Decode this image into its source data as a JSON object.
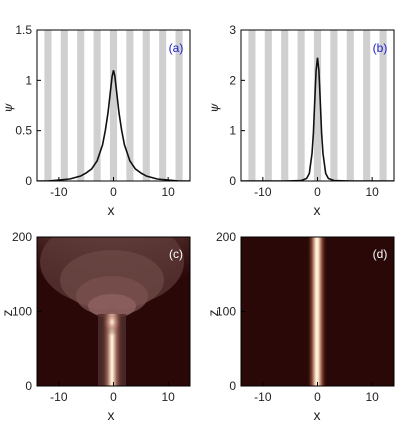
{
  "chart_data": [
    {
      "panel": "(a)",
      "type": "line",
      "xlabel": "x",
      "ylabel": "ψ",
      "xlim": [
        -14,
        14
      ],
      "ylim": [
        0,
        1.5
      ],
      "xticks": [
        "-10",
        "0",
        "10"
      ],
      "yticks": [
        "0",
        "0.5",
        "1",
        "1.5"
      ],
      "background": "alternating gray/white lattice stripes",
      "series": [
        {
          "x": [
            -14,
            -12,
            -10,
            -8,
            -6,
            -5,
            -4,
            -3,
            -2,
            -1.5,
            -1,
            -0.5,
            -0.25,
            0,
            0.25,
            0.5,
            1,
            1.5,
            2,
            3,
            4,
            5,
            6,
            8,
            10,
            12,
            14
          ],
          "values": [
            0.0,
            0.0,
            0.01,
            0.02,
            0.05,
            0.08,
            0.12,
            0.2,
            0.36,
            0.5,
            0.68,
            0.92,
            1.04,
            1.1,
            1.04,
            0.92,
            0.68,
            0.5,
            0.36,
            0.2,
            0.12,
            0.08,
            0.05,
            0.02,
            0.01,
            0.0,
            0.0
          ]
        }
      ]
    },
    {
      "panel": "(b)",
      "type": "line",
      "xlabel": "x",
      "ylabel": "ψ",
      "xlim": [
        -14,
        14
      ],
      "ylim": [
        0,
        3
      ],
      "xticks": [
        "-10",
        "0",
        "10"
      ],
      "yticks": [
        "0",
        "1",
        "2",
        "3"
      ],
      "background": "alternating gray/white lattice stripes",
      "series": [
        {
          "x": [
            -14,
            -6,
            -3,
            -2,
            -1.5,
            -1,
            -0.75,
            -0.5,
            -0.25,
            0,
            0.25,
            0.5,
            0.75,
            1,
            1.5,
            2,
            3,
            6,
            14
          ],
          "values": [
            0.0,
            0.0,
            0.01,
            0.05,
            0.15,
            0.55,
            0.95,
            1.6,
            2.2,
            2.45,
            2.2,
            1.6,
            0.95,
            0.55,
            0.15,
            0.05,
            0.01,
            0.0,
            0.0
          ]
        }
      ]
    },
    {
      "panel": "(c)",
      "type": "heatmap",
      "xlabel": "x",
      "ylabel": "z",
      "xlim": [
        -14,
        14
      ],
      "ylim": [
        0,
        200
      ],
      "xticks": [
        "-10",
        "0",
        "10"
      ],
      "yticks": [
        "0",
        "100",
        "200"
      ],
      "description_values": {
        "beam_center_x": 0,
        "beam_stable_until_z": 95,
        "beam_spreads_above_z": 95
      }
    },
    {
      "panel": "(d)",
      "type": "heatmap",
      "xlabel": "x",
      "ylabel": "z",
      "xlim": [
        -14,
        14
      ],
      "ylim": [
        0,
        200
      ],
      "xticks": [
        "-10",
        "0",
        "10"
      ],
      "yticks": [
        "0",
        "100",
        "200"
      ],
      "description_values": {
        "beam_center_x": 0,
        "beam_width_x": 1.2
      }
    }
  ],
  "colors": {
    "stripe": "#d0d0d0",
    "curve": "#111111",
    "heat_bg": "#2b0808",
    "heat_core": "#fff8ec",
    "label_blue": "#1a1acc"
  }
}
